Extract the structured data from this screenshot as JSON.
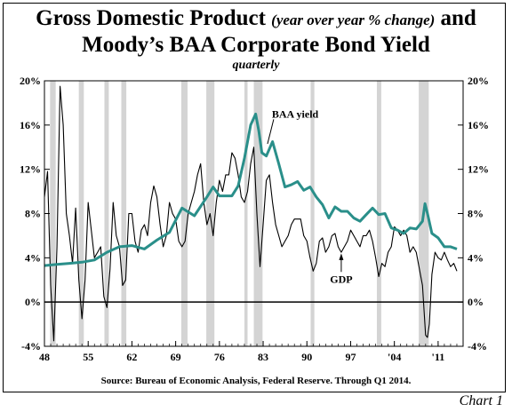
{
  "chart_data": {
    "type": "line",
    "title_main": "Gross Domestic Product",
    "title_paren": "(year over year % change)",
    "title_and": "and",
    "title_line2": "Moody’s BAA Corporate Bond Yield",
    "subtitle": "quarterly",
    "source": "Source:  Bureau of Economic Analysis, Federal Reserve. Through Q1 2014.",
    "label": "Chart 1",
    "xlim": [
      1948,
      2015
    ],
    "ylim": [
      -4,
      20
    ],
    "x_ticks": [
      {
        "value": 1948,
        "label": "48"
      },
      {
        "value": 1955,
        "label": "55"
      },
      {
        "value": 1962,
        "label": "62"
      },
      {
        "value": 1969,
        "label": "69"
      },
      {
        "value": 1976,
        "label": "76"
      },
      {
        "value": 1983,
        "label": "83"
      },
      {
        "value": 1990,
        "label": "90"
      },
      {
        "value": 1997,
        "label": "97"
      },
      {
        "value": 2004,
        "label": "'04"
      },
      {
        "value": 2011,
        "label": "'11"
      }
    ],
    "y_ticks": [
      {
        "value": -4,
        "label": "-4%"
      },
      {
        "value": 0,
        "label": "0%"
      },
      {
        "value": 4,
        "label": "4%"
      },
      {
        "value": 8,
        "label": "8%"
      },
      {
        "value": 12,
        "label": "12%"
      },
      {
        "value": 16,
        "label": "16%"
      },
      {
        "value": 20,
        "label": "20%"
      }
    ],
    "recessions": [
      [
        1948.9,
        1949.8
      ],
      [
        1953.5,
        1954.3
      ],
      [
        1957.6,
        1958.3
      ],
      [
        1960.3,
        1961.1
      ],
      [
        1969.9,
        1970.9
      ],
      [
        1973.9,
        1975.2
      ],
      [
        1980.0,
        1980.5
      ],
      [
        1981.5,
        1982.9
      ],
      [
        1990.6,
        1991.2
      ],
      [
        2001.2,
        2001.9
      ],
      [
        2007.9,
        2009.5
      ]
    ],
    "series": [
      {
        "name": "BAA yield",
        "color": "#2a8f8a",
        "x": [
          1948,
          1950,
          1952,
          1954,
          1956,
          1958,
          1960,
          1962,
          1964,
          1966,
          1968,
          1970,
          1972,
          1974,
          1975,
          1976,
          1978,
          1979,
          1980,
          1981,
          1981.8,
          1982.3,
          1982.8,
          1983.5,
          1984.5,
          1985.5,
          1986.5,
          1987.5,
          1988.5,
          1989.5,
          1990.5,
          1991.5,
          1992.5,
          1993.5,
          1994.5,
          1995.5,
          1996.5,
          1997.5,
          1998.5,
          1999.5,
          2000.5,
          2001.5,
          2002.5,
          2003.5,
          2004.5,
          2005.5,
          2006.5,
          2007.5,
          2008.5,
          2008.9,
          2009.3,
          2010,
          2011,
          2012,
          2013,
          2014
        ],
        "values": [
          3.3,
          3.4,
          3.5,
          3.6,
          3.8,
          4.5,
          5.0,
          5.1,
          4.8,
          5.6,
          6.3,
          8.5,
          7.8,
          9.5,
          10.4,
          9.6,
          9.6,
          10.5,
          13.0,
          16.0,
          17.0,
          15.5,
          13.5,
          13.2,
          14.5,
          12.5,
          10.4,
          10.6,
          10.9,
          10.1,
          10.4,
          9.5,
          8.8,
          7.6,
          8.6,
          8.2,
          8.2,
          7.6,
          7.3,
          7.9,
          8.5,
          7.9,
          8.0,
          6.7,
          6.5,
          6.2,
          6.7,
          6.6,
          7.3,
          8.9,
          8.0,
          6.2,
          5.8,
          5.0,
          5.0,
          4.8
        ]
      },
      {
        "name": "GDP",
        "color": "#000000",
        "x": [
          1948,
          1948.5,
          1949,
          1949.5,
          1950,
          1950.5,
          1951,
          1951.5,
          1952,
          1952.5,
          1953,
          1953.5,
          1954,
          1954.5,
          1955,
          1955.5,
          1956,
          1956.5,
          1957,
          1957.5,
          1958,
          1958.5,
          1959,
          1959.5,
          1960,
          1960.5,
          1961,
          1961.5,
          1962,
          1962.5,
          1963,
          1963.5,
          1964,
          1964.5,
          1965,
          1965.5,
          1966,
          1966.5,
          1967,
          1967.5,
          1968,
          1968.5,
          1969,
          1969.5,
          1970,
          1970.5,
          1971,
          1971.5,
          1972,
          1972.5,
          1973,
          1973.5,
          1974,
          1974.5,
          1975,
          1975.5,
          1976,
          1976.5,
          1977,
          1977.5,
          1978,
          1978.5,
          1979,
          1979.5,
          1980,
          1980.5,
          1981,
          1981.5,
          1982,
          1982.5,
          1983,
          1983.5,
          1984,
          1984.5,
          1985,
          1985.5,
          1986,
          1986.5,
          1987,
          1987.5,
          1988,
          1988.5,
          1989,
          1989.5,
          1990,
          1990.5,
          1991,
          1991.5,
          1992,
          1992.5,
          1993,
          1993.5,
          1994,
          1994.5,
          1995,
          1995.5,
          1996,
          1996.5,
          1997,
          1997.5,
          1998,
          1998.5,
          1999,
          1999.5,
          2000,
          2000.5,
          2001,
          2001.5,
          2002,
          2002.5,
          2003,
          2003.5,
          2004,
          2004.5,
          2005,
          2005.5,
          2006,
          2006.5,
          2007,
          2007.5,
          2008,
          2008.5,
          2009,
          2009.3,
          2009.6,
          2010,
          2010.5,
          2011,
          2011.5,
          2012,
          2012.5,
          2013,
          2013.5,
          2014
        ],
        "values": [
          9.5,
          11.8,
          1.5,
          -3.5,
          5.0,
          19.5,
          16.0,
          8.0,
          6.0,
          3.5,
          8.5,
          2.0,
          -1.5,
          2.0,
          9.0,
          6.5,
          4.0,
          4.5,
          5.0,
          0.5,
          -0.5,
          3.0,
          9.0,
          6.0,
          5.0,
          1.5,
          2.0,
          8.0,
          8.0,
          5.5,
          4.5,
          6.5,
          7.0,
          6.0,
          9.0,
          10.5,
          9.5,
          7.0,
          5.0,
          6.0,
          9.0,
          8.0,
          7.5,
          5.5,
          5.0,
          5.5,
          8.0,
          9.0,
          10.0,
          11.5,
          12.5,
          9.0,
          7.0,
          8.0,
          6.0,
          9.0,
          11.0,
          10.0,
          11.5,
          11.5,
          13.5,
          13.0,
          11.5,
          9.5,
          9.0,
          10.0,
          12.5,
          14.0,
          8.0,
          3.2,
          7.0,
          11.0,
          11.5,
          9.0,
          7.0,
          6.0,
          5.0,
          5.5,
          6.0,
          7.0,
          7.5,
          7.5,
          7.5,
          6.0,
          5.5,
          4.0,
          2.8,
          3.5,
          5.5,
          5.8,
          4.5,
          5.0,
          6.0,
          6.2,
          5.0,
          4.5,
          5.0,
          5.5,
          6.5,
          6.0,
          5.5,
          5.0,
          6.0,
          6.0,
          6.5,
          5.5,
          4.0,
          2.3,
          3.5,
          3.2,
          4.5,
          5.0,
          6.8,
          6.5,
          6.0,
          6.5,
          6.0,
          4.5,
          5.0,
          4.5,
          3.0,
          1.5,
          -3.0,
          -3.2,
          -2.0,
          2.5,
          4.5,
          4.0,
          3.8,
          4.5,
          3.8,
          3.2,
          3.5,
          2.8
        ]
      }
    ],
    "annotations": [
      {
        "text": "BAA yield",
        "x": 1984.4,
        "y": 17.0
      },
      {
        "text": "GDP",
        "x": 1995.5,
        "y": 2.4
      }
    ]
  }
}
